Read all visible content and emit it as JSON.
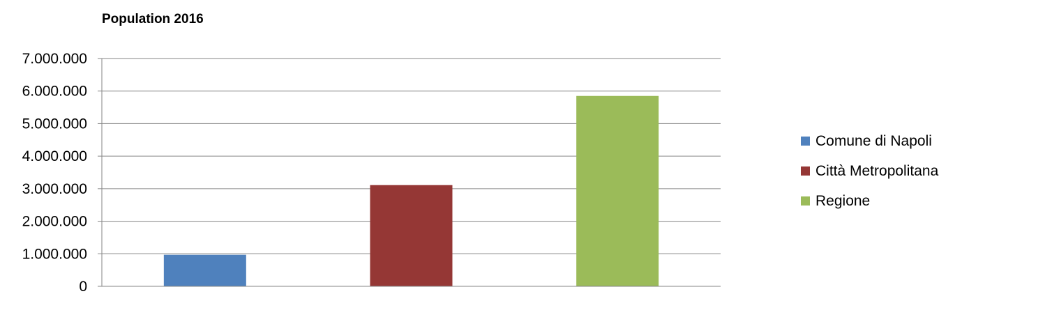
{
  "chart_data": {
    "type": "bar",
    "title": "Population 2016",
    "xlabel": "",
    "ylabel": "",
    "ylim": [
      0,
      7000000
    ],
    "yticks": [
      0,
      1000000,
      2000000,
      3000000,
      4000000,
      5000000,
      6000000,
      7000000
    ],
    "ytick_labels": [
      "0",
      "1.000.000",
      "2.000.000",
      "3.000.000",
      "4.000.000",
      "5.000.000",
      "6.000.000",
      "7.000.000"
    ],
    "grid": true,
    "legend_position": "right",
    "series": [
      {
        "name": "Comune di Napoli",
        "value": 970000,
        "color": "#4f81bd"
      },
      {
        "name": "Città Metropolitana",
        "value": 3110000,
        "color": "#953735"
      },
      {
        "name": "Regione",
        "value": 5850000,
        "color": "#9bbb59"
      }
    ]
  }
}
